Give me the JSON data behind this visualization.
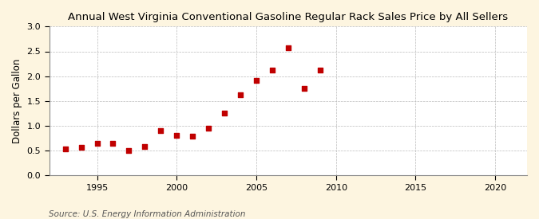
{
  "title": "Annual West Virginia Conventional Gasoline Regular Rack Sales Price by All Sellers",
  "ylabel": "Dollars per Gallon",
  "source": "Source: U.S. Energy Information Administration",
  "years": [
    1993,
    1994,
    1995,
    1996,
    1997,
    1998,
    1999,
    2000,
    2001,
    2002,
    2003,
    2004,
    2005,
    2006,
    2007,
    2008,
    2009,
    2010
  ],
  "values": [
    0.54,
    0.57,
    0.65,
    0.64,
    0.5,
    0.58,
    0.91,
    0.8,
    0.79,
    0.95,
    1.26,
    1.63,
    1.91,
    2.13,
    2.57,
    1.75,
    2.12,
    null
  ],
  "xlim": [
    1992,
    2022
  ],
  "ylim": [
    0.0,
    3.0
  ],
  "xticks": [
    1995,
    2000,
    2005,
    2010,
    2015,
    2020
  ],
  "yticks": [
    0.0,
    0.5,
    1.0,
    1.5,
    2.0,
    2.5,
    3.0
  ],
  "marker_color": "#c00000",
  "marker": "s",
  "marker_size": 4,
  "fig_bg_color": "#fdf5e0",
  "plot_bg_color": "#ffffff",
  "grid_color": "#bbbbbb",
  "title_fontsize": 9.5,
  "label_fontsize": 8.5,
  "tick_fontsize": 8,
  "source_fontsize": 7.5,
  "title_fontweight": "normal"
}
